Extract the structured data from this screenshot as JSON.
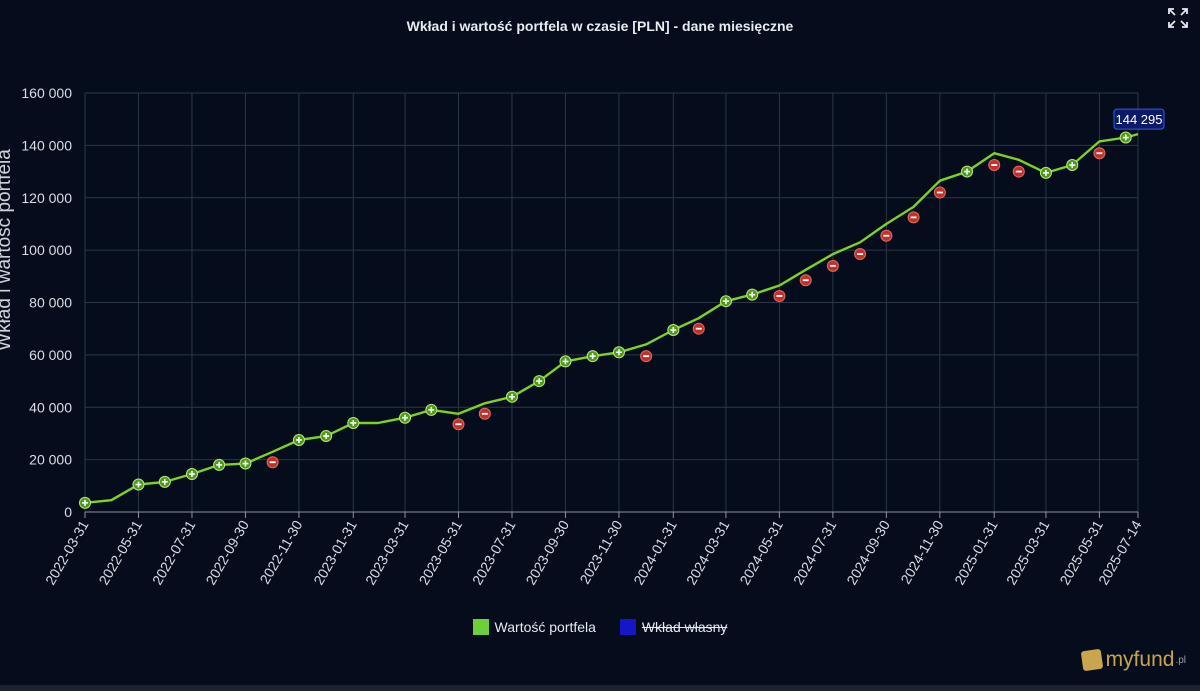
{
  "header": {
    "expand_icon": "expand-icon"
  },
  "brand": {
    "logo_text": "myfund",
    "logo_suffix": ".pl"
  },
  "colors": {
    "series_line": "#7ed321",
    "legend_green": "#6fcf3a",
    "legend_blue": "#1616c8",
    "down_marker": "#c0312b",
    "up_marker": "#5aa61a"
  },
  "chart_data": {
    "type": "line",
    "title": "Wkład i wartość portfela w czasie [PLN] - dane miesięczne",
    "ylabel": "Wkład i wartość portfela",
    "xlabel": "",
    "ylim": [
      0,
      160000
    ],
    "yticks": [
      0,
      20000,
      40000,
      60000,
      80000,
      100000,
      120000,
      140000,
      160000
    ],
    "ytick_labels": [
      "0",
      "20 000",
      "40 000",
      "60 000",
      "80 000",
      "100 000",
      "120 000",
      "140 000",
      "160 000"
    ],
    "xtick_labels": [
      "2022-03-31",
      "2022-05-31",
      "2022-07-31",
      "2022-09-30",
      "2022-11-30",
      "2023-01-31",
      "2023-03-31",
      "2023-05-31",
      "2023-07-31",
      "2023-09-30",
      "2023-11-30",
      "2024-01-31",
      "2024-03-31",
      "2024-05-31",
      "2024-07-31",
      "2024-09-30",
      "2024-11-30",
      "2025-01-31",
      "2025-03-31",
      "2025-05-31",
      "2025-07-14"
    ],
    "grid": true,
    "legend_position": "bottom",
    "legend": [
      {
        "name": "Wartość portfela",
        "visible": true
      },
      {
        "name": "Wkład własny",
        "visible": false
      }
    ],
    "series": [
      {
        "name": "Wartość portfela",
        "x": [
          "2022-03-31",
          "2022-04-30",
          "2022-05-31",
          "2022-06-30",
          "2022-07-31",
          "2022-08-31",
          "2022-09-30",
          "2022-10-31",
          "2022-11-30",
          "2022-12-31",
          "2023-01-31",
          "2023-02-28",
          "2023-03-31",
          "2023-04-30",
          "2023-05-31",
          "2023-06-30",
          "2023-07-31",
          "2023-08-31",
          "2023-09-30",
          "2023-10-31",
          "2023-11-30",
          "2023-12-31",
          "2024-01-31",
          "2024-02-29",
          "2024-03-31",
          "2024-04-30",
          "2024-05-31",
          "2024-06-30",
          "2024-07-31",
          "2024-08-31",
          "2024-09-30",
          "2024-10-31",
          "2024-11-30",
          "2024-12-31",
          "2025-01-31",
          "2025-02-28",
          "2025-03-31",
          "2025-04-30",
          "2025-05-31",
          "2025-06-30",
          "2025-07-14"
        ],
        "values": [
          3500,
          4500,
          10500,
          11500,
          14500,
          18000,
          18500,
          23000,
          27500,
          29000,
          34000,
          34000,
          36000,
          39000,
          37500,
          41500,
          44000,
          50000,
          57500,
          59500,
          61000,
          64000,
          69500,
          74000,
          80500,
          83000,
          86500,
          92500,
          98500,
          103000,
          110000,
          116500,
          126500,
          130000,
          137000,
          134500,
          129500,
          132500,
          141500,
          143000,
          144295
        ],
        "markers": [
          "up",
          "none",
          "up",
          "up",
          "up",
          "up",
          "up",
          "down",
          "up",
          "up",
          "up",
          "none",
          "up",
          "up",
          "down",
          "down",
          "up",
          "up",
          "up",
          "up",
          "up",
          "down",
          "up",
          "down",
          "up",
          "up",
          "down",
          "down",
          "down",
          "down",
          "down",
          "down",
          "down",
          "up",
          "down",
          "down",
          "up",
          "up",
          "down",
          "up",
          "none"
        ],
        "marker_values": [
          3500,
          null,
          10500,
          11500,
          14500,
          18000,
          18500,
          19000,
          27500,
          29000,
          34000,
          null,
          36000,
          39000,
          33500,
          37500,
          44000,
          50000,
          57500,
          59500,
          61000,
          59500,
          69500,
          70000,
          80500,
          83000,
          82500,
          88500,
          94000,
          98500,
          105500,
          112500,
          122000,
          130000,
          132500,
          130000,
          129500,
          132500,
          137000,
          143000,
          null
        ]
      }
    ],
    "annotations": [
      {
        "x": "2025-07-14",
        "text": "144 295"
      }
    ]
  }
}
